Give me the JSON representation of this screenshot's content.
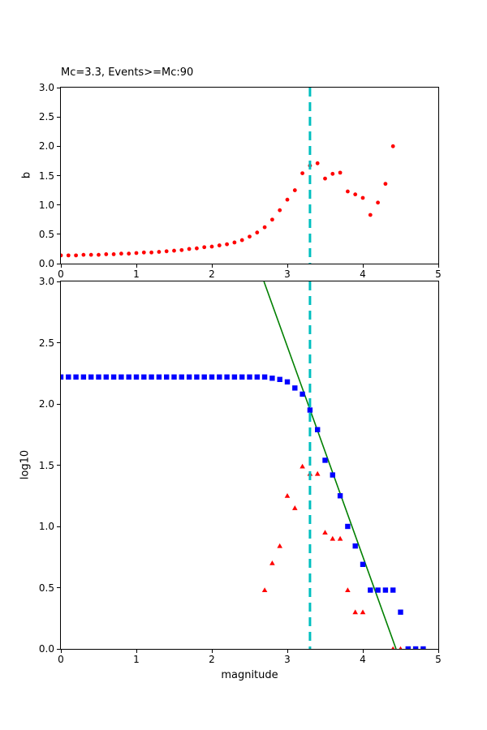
{
  "figure_title": "Mc=3.3, Events>=Mc:90",
  "mc_line_color": "#00bfbf",
  "chart_data": [
    {
      "type": "scatter",
      "name": "b-value-stability-plot",
      "title": "Mc=3.3, Events>=Mc:90",
      "xlabel": "",
      "ylabel": "b",
      "xlim": [
        0,
        5
      ],
      "ylim": [
        0,
        3
      ],
      "grid": false,
      "legend": "none",
      "xticks": {
        "values": [
          0,
          1,
          2,
          3,
          4,
          5
        ],
        "labels": [
          "0",
          "1",
          "2",
          "3",
          "4",
          "5"
        ]
      },
      "yticks": {
        "values": [
          0,
          0.5,
          1,
          1.5,
          2,
          2.5,
          3
        ],
        "labels": [
          "0.0",
          "0.5",
          "1.0",
          "1.5",
          "2.0",
          "2.5",
          "3.0"
        ]
      },
      "vline": {
        "x": 3.3,
        "color": "#00bfbf",
        "style": "dashed",
        "label": "Mc"
      },
      "series": [
        {
          "name": "b-values",
          "marker": "circle",
          "color": "#ff0000",
          "x": [
            0.0,
            0.1,
            0.2,
            0.3,
            0.4,
            0.5,
            0.6,
            0.7,
            0.8,
            0.9,
            1.0,
            1.1,
            1.2,
            1.3,
            1.4,
            1.5,
            1.6,
            1.7,
            1.8,
            1.9,
            2.0,
            2.1,
            2.2,
            2.3,
            2.4,
            2.5,
            2.6,
            2.7,
            2.8,
            2.9,
            3.0,
            3.1,
            3.2,
            3.3,
            3.4,
            3.5,
            3.6,
            3.7,
            3.8,
            3.9,
            4.0,
            4.1,
            4.2,
            4.3,
            4.4
          ],
          "y": [
            0.14,
            0.14,
            0.14,
            0.15,
            0.15,
            0.15,
            0.16,
            0.16,
            0.17,
            0.17,
            0.18,
            0.19,
            0.19,
            0.2,
            0.21,
            0.22,
            0.23,
            0.25,
            0.26,
            0.28,
            0.29,
            0.31,
            0.33,
            0.36,
            0.4,
            0.46,
            0.53,
            0.62,
            0.75,
            0.91,
            1.09,
            1.25,
            1.54,
            1.67,
            1.71,
            1.45,
            1.53,
            1.55,
            1.23,
            1.18,
            1.12,
            0.83,
            1.04,
            1.36,
            2.0
          ]
        }
      ]
    },
    {
      "type": "scatter",
      "name": "frequency-magnitude-distribution",
      "title": "",
      "xlabel": "magnitude",
      "ylabel": "log10",
      "xlim": [
        0,
        5
      ],
      "ylim": [
        0,
        3
      ],
      "grid": false,
      "legend": "none",
      "xticks": {
        "values": [
          0,
          1,
          2,
          3,
          4,
          5
        ],
        "labels": [
          "0",
          "1",
          "2",
          "3",
          "4",
          "5"
        ]
      },
      "yticks": {
        "values": [
          0,
          0.5,
          1,
          1.5,
          2,
          2.5,
          3
        ],
        "labels": [
          "0.0",
          "0.5",
          "1.0",
          "1.5",
          "2.0",
          "2.5",
          "3.0"
        ]
      },
      "vline": {
        "x": 3.3,
        "color": "#00bfbf",
        "style": "dashed",
        "label": "Mc"
      },
      "series": [
        {
          "name": "gutenberg-richter-fit-line",
          "marker": "line",
          "color": "#008000",
          "x": [
            2.69,
            4.44
          ],
          "y": [
            3.0,
            0.0
          ]
        },
        {
          "name": "cumulative-event-counts",
          "marker": "square",
          "color": "#0000ff",
          "x": [
            0.0,
            0.1,
            0.2,
            0.3,
            0.4,
            0.5,
            0.6,
            0.7,
            0.8,
            0.9,
            1.0,
            1.1,
            1.2,
            1.3,
            1.4,
            1.5,
            1.6,
            1.7,
            1.8,
            1.9,
            2.0,
            2.1,
            2.2,
            2.3,
            2.4,
            2.5,
            2.6,
            2.7,
            2.8,
            2.9,
            3.0,
            3.1,
            3.2,
            3.3,
            3.4,
            3.5,
            3.6,
            3.7,
            3.8,
            3.9,
            4.0,
            4.1,
            4.2,
            4.3,
            4.4,
            4.5,
            4.6,
            4.7,
            4.8
          ],
          "y": [
            2.22,
            2.22,
            2.22,
            2.22,
            2.22,
            2.22,
            2.22,
            2.22,
            2.22,
            2.22,
            2.22,
            2.22,
            2.22,
            2.22,
            2.22,
            2.22,
            2.22,
            2.22,
            2.22,
            2.22,
            2.22,
            2.22,
            2.22,
            2.22,
            2.22,
            2.22,
            2.22,
            2.22,
            2.21,
            2.2,
            2.18,
            2.13,
            2.08,
            1.95,
            1.79,
            1.54,
            1.42,
            1.25,
            1.0,
            0.84,
            0.69,
            0.48,
            0.48,
            0.48,
            0.48,
            0.3,
            0.0,
            0.0,
            0.0
          ]
        },
        {
          "name": "per-bin-event-counts",
          "marker": "triangle",
          "color": "#ff0000",
          "x": [
            2.7,
            2.8,
            2.9,
            3.0,
            3.1,
            3.2,
            3.3,
            3.4,
            3.5,
            3.6,
            3.7,
            3.8,
            3.9,
            4.0,
            4.4,
            4.5
          ],
          "y": [
            0.48,
            0.7,
            0.84,
            1.25,
            1.15,
            1.49,
            1.43,
            1.43,
            0.95,
            0.9,
            0.9,
            0.48,
            0.3,
            0.3,
            0.0,
            0.0
          ]
        }
      ]
    }
  ]
}
